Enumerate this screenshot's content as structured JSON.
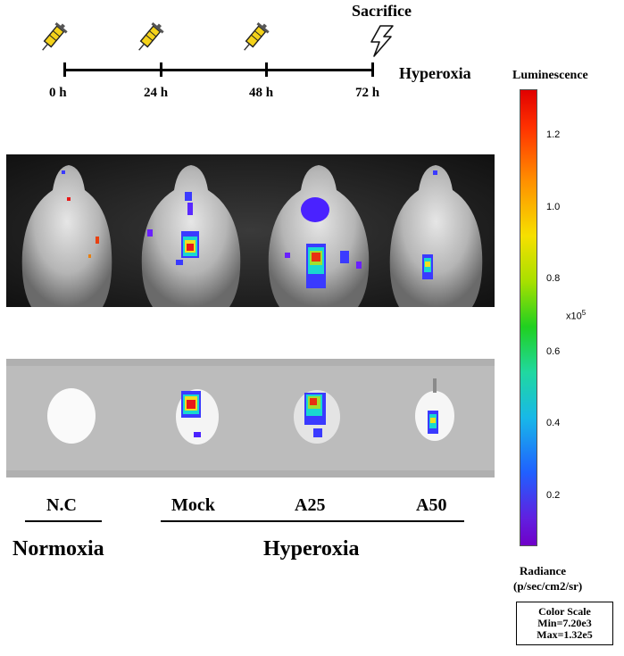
{
  "timeline": {
    "points": [
      "0 h",
      "24 h",
      "48 h",
      "72 h"
    ],
    "end_event": "Sacrifice",
    "condition": "Hyperoxia",
    "icons": [
      "syringe-icon",
      "syringe-icon",
      "syringe-icon",
      "lightning-icon"
    ]
  },
  "images": {
    "top_panel": "whole-body bioluminescence images",
    "bottom_panel": "ex vivo lung bioluminescence images"
  },
  "groups": {
    "labels": [
      "N.C",
      "Mock",
      "A25",
      "A50"
    ],
    "conditions": [
      "Normoxia",
      "Hyperoxia"
    ]
  },
  "colorbar": {
    "title": "Luminescence",
    "ticks": [
      "1.2",
      "1.0",
      "0.8",
      "0.6",
      "0.4",
      "0.2"
    ],
    "multiplier": "x10",
    "exponent": "5",
    "unit_title": "Radiance",
    "unit": "(p/sec/cm2/sr)",
    "scale_box": {
      "title": "Color Scale",
      "min": "Min=7.20e3",
      "max": "Max=1.32e5"
    }
  }
}
